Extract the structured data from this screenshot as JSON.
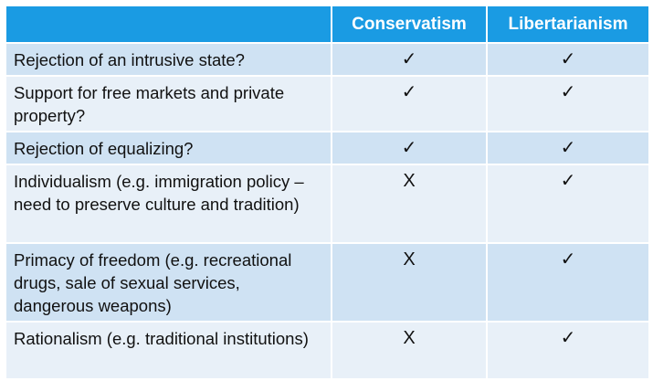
{
  "table": {
    "header": [
      "Conservatism",
      "Libertarianism"
    ],
    "rows": [
      {
        "label": "Rejection of an intrusive state?",
        "values": [
          "✓",
          "✓"
        ]
      },
      {
        "label": "Support for free markets and private property?",
        "values": [
          "✓",
          "✓"
        ]
      },
      {
        "label": "Rejection of equalizing?",
        "values": [
          "✓",
          "✓"
        ]
      },
      {
        "label": "Individualism (e.g. immigration policy – need to preserve culture and tradition)",
        "values": [
          "X",
          "✓"
        ]
      },
      {
        "label": "Primacy of freedom (e.g. recreational drugs, sale of sexual services, dangerous weapons)",
        "values": [
          "X",
          "✓"
        ]
      },
      {
        "label": "Rationalism (e.g. traditional institutions)",
        "values": [
          "X",
          "✓"
        ]
      }
    ]
  }
}
